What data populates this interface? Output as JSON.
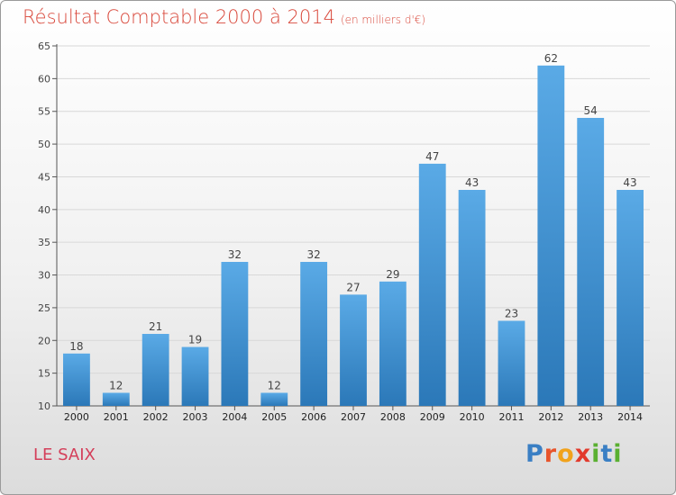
{
  "header": {
    "title": "Résultat Comptable 2000 à 2014",
    "subtitle": "(en milliers d'€)"
  },
  "location": "LE SAIX",
  "logo": {
    "text": "Proxiti",
    "letters": [
      {
        "ch": "P",
        "color": "#3a7fc4"
      },
      {
        "ch": "r",
        "color": "#e8542b"
      },
      {
        "ch": "o",
        "color": "#f1a21b"
      },
      {
        "ch": "x",
        "color": "#e23a2c"
      },
      {
        "ch": "i",
        "color": "#5ab031"
      },
      {
        "ch": "t",
        "color": "#3a7fc4"
      },
      {
        "ch": "i",
        "color": "#5ab031"
      }
    ]
  },
  "colors": {
    "bar_top": "#5aaae6",
    "bar_bottom": "#2b78b8",
    "grid": "#d8d8d8",
    "axis": "#555555",
    "text": "#444444",
    "title": "#d9493c",
    "location": "#d43f5a"
  },
  "chart_data": {
    "type": "bar",
    "title": "Résultat Comptable 2000 à 2014",
    "subtitle": "(en milliers d'€)",
    "xlabel": "",
    "ylabel": "",
    "categories": [
      "2000",
      "2001",
      "2002",
      "2003",
      "2004",
      "2005",
      "2006",
      "2007",
      "2008",
      "2009",
      "2010",
      "2011",
      "2012",
      "2013",
      "2014"
    ],
    "values": [
      18,
      12,
      21,
      19,
      32,
      12,
      32,
      27,
      29,
      47,
      43,
      23,
      62,
      54,
      43
    ],
    "ylim": [
      10,
      65
    ],
    "yticks": [
      10,
      15,
      20,
      25,
      30,
      35,
      40,
      45,
      50,
      55,
      60,
      65
    ],
    "grid": true,
    "data_labels": true
  }
}
